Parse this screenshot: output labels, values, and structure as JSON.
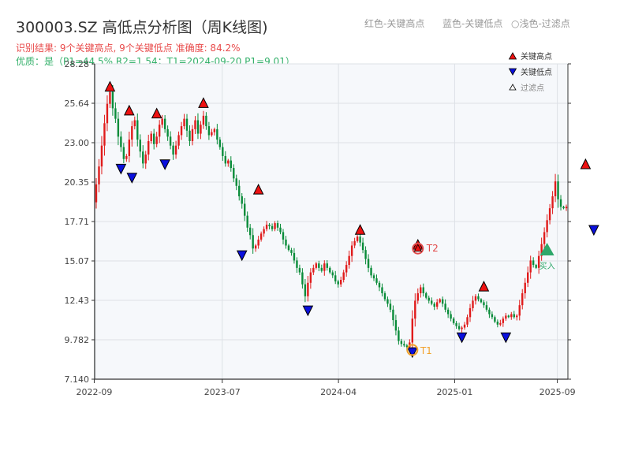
{
  "title": "300003.SZ 高低点分析图（周K线图)",
  "top_legend": [
    "红色-关键高点",
    "蓝色-关键低点",
    "○浅色-过滤点"
  ],
  "subtitle_result": "识别结果: 9个关键高点, 9个关键低点  准确度: 84.2%",
  "subtitle_quality": "优质：是（P1=44.5%  R2=1.54；T1=2024-09-20 P1=9.01）",
  "colors": {
    "up": "#e01b1b",
    "down": "#0a8c3a",
    "high": "#ee1111",
    "low": "#0a10dd",
    "filtered": "#ffffff",
    "t1": "#f2a12b",
    "t2": "#e24a4a",
    "buy": "#2ea86a",
    "plot_bg": "#f6f8fb",
    "grid": "#dde1e6"
  },
  "chart_data": {
    "type": "candlestick",
    "title": "300003.SZ 高低点分析图（周K线图)",
    "xlabel": "",
    "ylabel": "",
    "ylim": [
      7.14,
      28.28
    ],
    "y_ticks": [
      "7.140",
      "9.782",
      "12.43",
      "15.07",
      "17.71",
      "20.35",
      "23.00",
      "25.64",
      "28.28"
    ],
    "x_ticks": [
      "2022-09",
      "2023-07",
      "2024-04",
      "2025-01",
      "2025-09"
    ],
    "x_range": [
      "2022-09-02",
      "2025-09-26"
    ],
    "grid": true,
    "legend_position": "top-right",
    "legend": [
      "关键高点",
      "关键低点",
      "过滤点"
    ],
    "weekly_close": [
      20.2,
      21.4,
      22.8,
      24.3,
      25.6,
      26.4,
      25.3,
      24.6,
      23.4,
      22.7,
      21.9,
      22.1,
      23.2,
      24.1,
      24.5,
      23.2,
      22.4,
      21.6,
      22.2,
      23.1,
      23.6,
      22.9,
      23.4,
      24.2,
      24.6,
      23.9,
      23.4,
      22.8,
      22.2,
      22.8,
      23.5,
      24.1,
      24.6,
      23.8,
      23.1,
      23.9,
      24.5,
      23.6,
      24.2,
      24.8,
      24.1,
      23.5,
      23.7,
      23.9,
      23.2,
      22.7,
      22.1,
      21.6,
      21.8,
      21.3,
      20.6,
      20.1,
      19.4,
      18.9,
      18.1,
      17.3,
      16.8,
      15.9,
      16.1,
      16.5,
      16.9,
      17.2,
      17.5,
      17.4,
      17.2,
      17.6,
      17.3,
      17.0,
      16.5,
      16.1,
      15.8,
      15.6,
      15.1,
      14.6,
      14.3,
      13.5,
      12.7,
      13.6,
      14.3,
      14.6,
      14.9,
      14.6,
      14.4,
      14.9,
      14.6,
      14.3,
      14.1,
      13.7,
      13.5,
      13.8,
      14.3,
      14.8,
      15.4,
      16.1,
      16.4,
      16.7,
      16.3,
      15.8,
      15.2,
      14.6,
      14.1,
      13.9,
      13.6,
      13.3,
      12.9,
      12.5,
      12.2,
      11.8,
      11.1,
      10.4,
      9.7,
      9.5,
      9.4,
      9.3,
      9.6,
      11.2,
      12.4,
      12.9,
      13.3,
      12.9,
      12.6,
      12.4,
      12.2,
      12.0,
      12.3,
      12.5,
      12.2,
      11.8,
      11.5,
      11.2,
      10.9,
      10.7,
      10.5,
      10.6,
      10.8,
      11.3,
      11.9,
      12.4,
      12.7,
      12.5,
      12.3,
      12.1,
      11.8,
      11.5,
      11.3,
      11.0,
      10.8,
      10.9,
      11.2,
      11.4,
      11.3,
      11.5,
      11.3,
      11.4,
      12.1,
      12.9,
      13.6,
      14.3,
      15.1,
      14.8,
      14.6,
      15.4,
      16.2,
      17.0,
      17.8,
      18.6,
      19.4,
      20.4,
      19.2,
      18.7,
      18.6,
      18.7
    ],
    "key_highs": [
      {
        "week": 5,
        "value": 26.4
      },
      {
        "week": 12,
        "value": 24.8
      },
      {
        "week": 22,
        "value": 24.6
      },
      {
        "week": 39,
        "value": 25.3
      },
      {
        "week": 59,
        "value": 19.5
      },
      {
        "week": 96,
        "value": 16.8
      },
      {
        "week": 117,
        "value": 15.8
      },
      {
        "week": 141,
        "value": 13.0
      },
      {
        "week": 178,
        "value": 21.2
      }
    ],
    "key_lows": [
      {
        "week": 9,
        "value": 21.6
      },
      {
        "week": 13,
        "value": 21.0
      },
      {
        "week": 25,
        "value": 21.9
      },
      {
        "week": 53,
        "value": 15.8
      },
      {
        "week": 77,
        "value": 12.1
      },
      {
        "week": 115,
        "value": 9.3
      },
      {
        "week": 133,
        "value": 10.3
      },
      {
        "week": 149,
        "value": 10.3
      },
      {
        "week": 181,
        "value": 17.5
      }
    ],
    "annotations": {
      "T1": {
        "label": "T1",
        "week": 115,
        "value": 9.1
      },
      "T2": {
        "label": "T2",
        "week": 117,
        "value": 15.9
      },
      "buy": {
        "label": "买入",
        "week": 164,
        "value": 15.7
      }
    }
  }
}
